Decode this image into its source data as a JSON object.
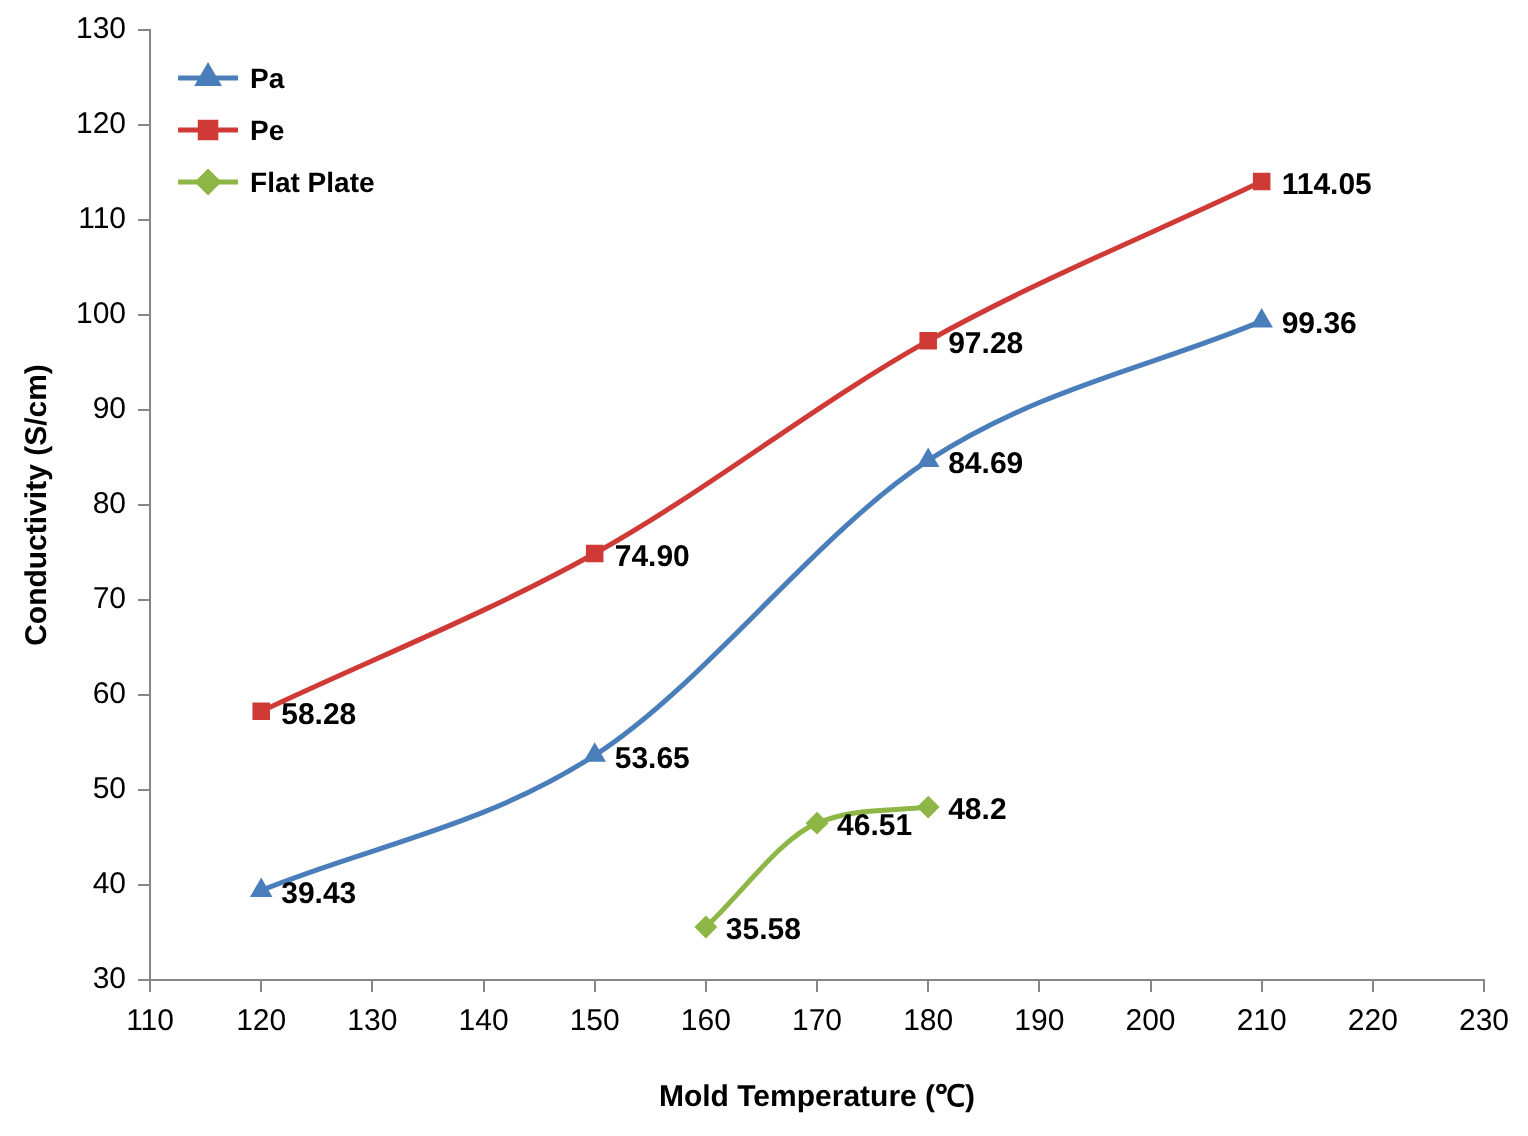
{
  "chart_data": {
    "type": "line",
    "xlabel": "Mold Temperature (℃)",
    "ylabel": "Conductivity (S/cm)",
    "xlim": [
      110,
      230
    ],
    "xticks": [
      110,
      120,
      130,
      140,
      150,
      160,
      170,
      180,
      190,
      200,
      210,
      220,
      230
    ],
    "ylim": [
      30,
      130
    ],
    "yticks": [
      30,
      40,
      50,
      60,
      70,
      80,
      90,
      100,
      110,
      120,
      130
    ],
    "grid": false,
    "legend": "top left",
    "line_style": "solid",
    "series": [
      {
        "name": "Pa",
        "color": "#4a7ebb",
        "marker": "triangle",
        "x": [
          120,
          150,
          180,
          210
        ],
        "values": [
          39.43,
          53.65,
          84.69,
          99.36
        ],
        "value_labels": [
          "39.43",
          "53.65",
          "84.69",
          "99.36"
        ]
      },
      {
        "name": "Pe",
        "color": "#d03a36",
        "marker": "square",
        "x": [
          120,
          150,
          180,
          210
        ],
        "values": [
          58.28,
          74.9,
          97.28,
          114.05
        ],
        "value_labels": [
          "58.28",
          "74.90",
          "97.28",
          "114.05"
        ]
      },
      {
        "name": "Flat Plate",
        "color": "#8db646",
        "marker": "diamond",
        "x": [
          160,
          170,
          180
        ],
        "values": [
          35.58,
          46.51,
          48.2
        ],
        "value_labels": [
          "35.58",
          "46.51",
          "48.2"
        ]
      }
    ]
  }
}
